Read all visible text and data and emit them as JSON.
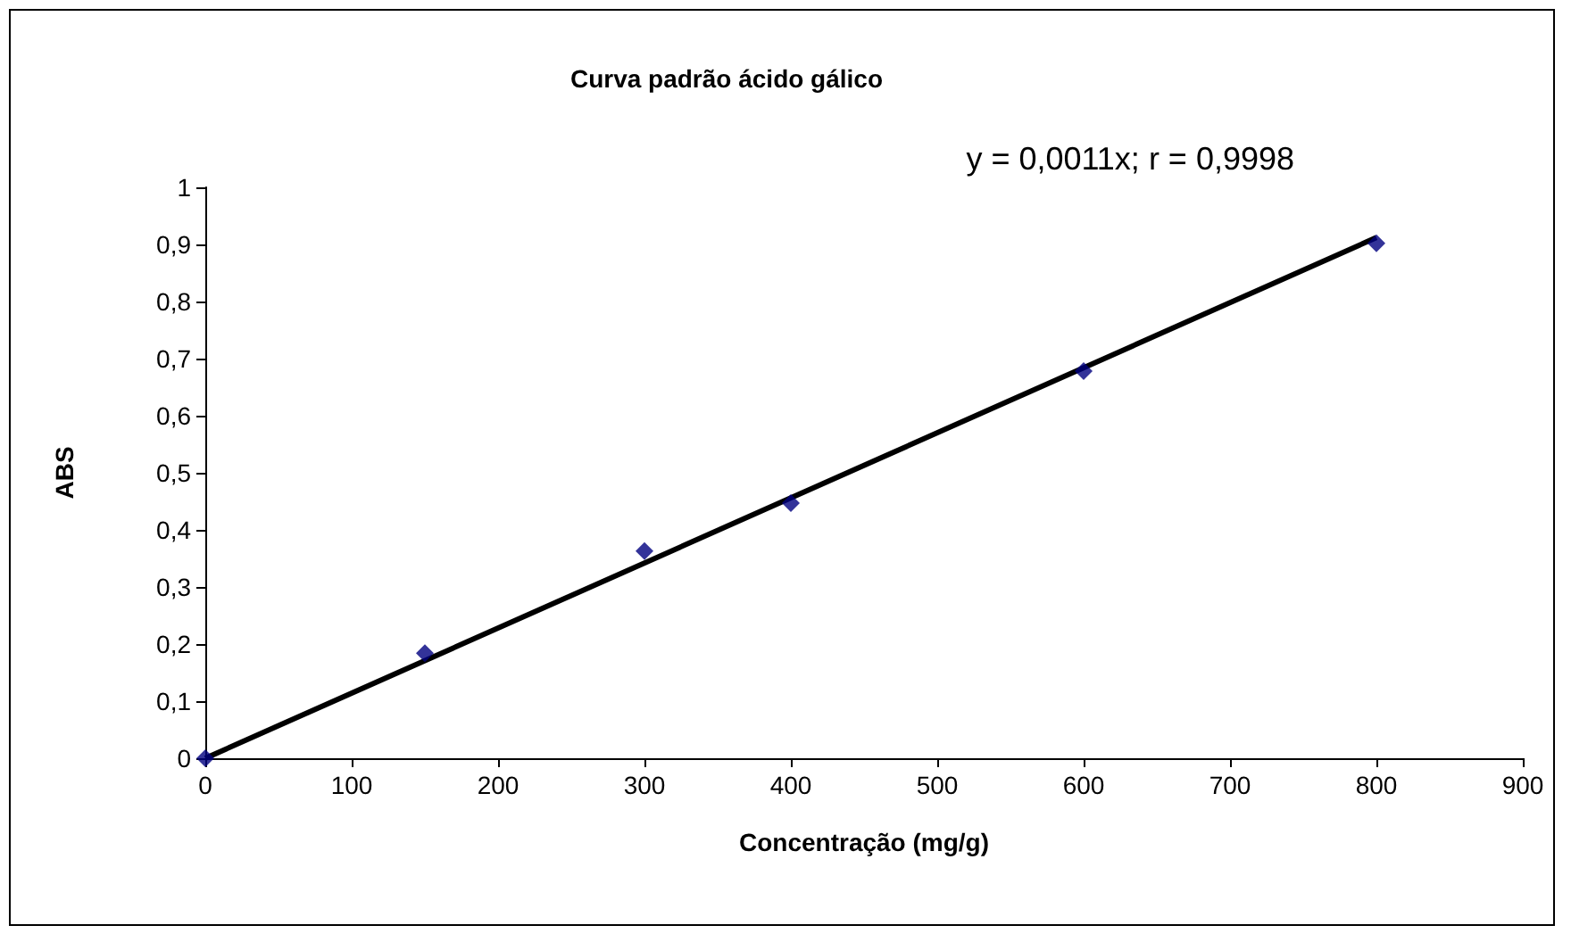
{
  "chart_data": {
    "type": "scatter",
    "title": "Curva padrão ácido gálico",
    "xlabel": "Concentração (mg/g)",
    "ylabel": "ABS",
    "annotations": [
      "y = 0,0011x; r = 0,9998"
    ],
    "x": [
      0,
      150,
      300,
      400,
      600,
      800
    ],
    "series": [
      {
        "color": "#000080",
        "values": [
          0,
          0.184,
          0.363,
          0.447,
          0.678,
          0.902
        ],
        "marker": "diamond"
      },
      {
        "type": "line",
        "color": "#000000",
        "x": [
          0,
          800
        ],
        "values": [
          0,
          0.912
        ],
        "marker": "none"
      }
    ],
    "xlim": [
      0,
      900
    ],
    "xticks": [
      0,
      100,
      200,
      300,
      400,
      500,
      600,
      700,
      800,
      900
    ],
    "ylim": [
      0,
      1
    ],
    "yticks": [
      0,
      {
        "value": 0.1,
        "label": "0,1"
      },
      {
        "value": 0.2,
        "label": "0,2"
      },
      {
        "value": 0.3,
        "label": "0,3"
      },
      {
        "value": 0.4,
        "label": "0,4"
      },
      {
        "value": 0.5,
        "label": "0,5"
      },
      {
        "value": 0.6,
        "label": "0,6"
      },
      {
        "value": 0.7,
        "label": "0,7"
      },
      {
        "value": 0.8,
        "label": "0,8"
      },
      {
        "value": 0.9,
        "label": "0,9"
      },
      1
    ],
    "grid": false
  }
}
